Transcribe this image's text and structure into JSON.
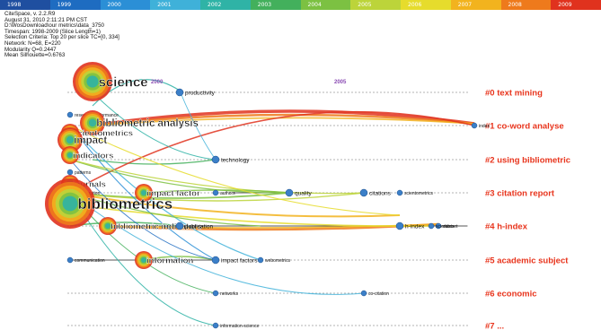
{
  "year_bar": {
    "years": [
      "1998",
      "1999",
      "2000",
      "2001",
      "2002",
      "2003",
      "2004",
      "2005",
      "2006",
      "2007",
      "2008",
      "2009"
    ],
    "colors": [
      "#1f4fa0",
      "#1e6cc1",
      "#2b8fd6",
      "#3fb1d9",
      "#2fb3a6",
      "#43b05c",
      "#7cc142",
      "#bcd43a",
      "#e6dc2c",
      "#f2b31e",
      "#ee7a1c",
      "#e0321e"
    ]
  },
  "info": {
    "lines": [
      "CiteSpace, v. 2.2.R9",
      "August 31, 2010 2:11:21 PM CST",
      "D:\\WosDownload\\our metrics\\data_3750",
      "Timespan: 1998-2009 (Slice Length=1)",
      "Selection Criteria: Top 20 per slice TC=[0, 334]",
      "Network: N=68, E=220",
      "Modularity Q=0.2447",
      "Mean Silhouette=0.6763"
    ]
  },
  "timeline": {
    "years": [
      {
        "label": "2000",
        "key": "y2000"
      },
      {
        "label": "2005",
        "key": "y2005"
      }
    ]
  },
  "clusters": [
    {
      "id": "#0",
      "label": "text mining"
    },
    {
      "id": "#1",
      "label": "co-word analyse"
    },
    {
      "id": "#2",
      "label": "using bibliometric"
    },
    {
      "id": "#3",
      "label": "citation report"
    },
    {
      "id": "#4",
      "label": "h-index"
    },
    {
      "id": "#5",
      "label": "academic subject"
    },
    {
      "id": "#6",
      "label": "economic"
    },
    {
      "id": "#7",
      "label": "..."
    }
  ],
  "cluster_color": "#e8341c",
  "nodes": [
    {
      "key": "science",
      "text": "science",
      "lane": 0,
      "yr": "y1999b",
      "size": "xl"
    },
    {
      "key": "productivity",
      "text": "productivity",
      "lane": 0,
      "yr": "y2002",
      "size": "s"
    },
    {
      "key": "research_performance",
      "text": "research performance",
      "lane": 1,
      "yr": "y1999a",
      "size": "xs"
    },
    {
      "key": "bibliometric_analysis",
      "text": "bibliometric analysis",
      "lane": 1,
      "yr": "y1999b",
      "size": "l"
    },
    {
      "key": "scientometrics",
      "text": "scientometrics",
      "lane": 1,
      "yr": "y1999a",
      "size": "m"
    },
    {
      "key": "impact",
      "text": "impact",
      "lane": 1,
      "yr": "y1999a",
      "size": "l"
    },
    {
      "key": "index",
      "text": "index",
      "lane": 1,
      "yr": "y2009",
      "size": "xs"
    },
    {
      "key": "indicators",
      "text": "indicators",
      "lane": 2,
      "yr": "y1999a",
      "size": "m"
    },
    {
      "key": "technology",
      "text": "technology",
      "lane": 2,
      "yr": "y2002b",
      "size": "s"
    },
    {
      "key": "patterns",
      "text": "patterns",
      "lane": 2,
      "yr": "y1999a",
      "size": "xs"
    },
    {
      "key": "journals",
      "text": "journals",
      "lane": 3,
      "yr": "y1999a",
      "size": "m"
    },
    {
      "key": "collaboration",
      "text": "collaboration",
      "lane": 3,
      "yr": "y1999a",
      "size": "xs"
    },
    {
      "key": "impact_factor",
      "text": "impact factor",
      "lane": 3,
      "yr": "y2001",
      "size": "m"
    },
    {
      "key": "authors",
      "text": "authors",
      "lane": 3,
      "yr": "y2002b",
      "size": "xs"
    },
    {
      "key": "quality",
      "text": "quality",
      "lane": 3,
      "yr": "y2004",
      "size": "s"
    },
    {
      "key": "citations",
      "text": "citations",
      "lane": 3,
      "yr": "y2005",
      "size": "s"
    },
    {
      "key": "scientometrics2",
      "text": "scientometrics",
      "lane": 3,
      "yr": "y2006",
      "size": "xs"
    },
    {
      "key": "bibliometrics",
      "text": "bibliometrics",
      "lane": 3,
      "yr": "y1999a",
      "size": "xxl"
    },
    {
      "key": "h_index",
      "text": "h-index",
      "lane": 4,
      "yr": "y2006",
      "size": "s"
    },
    {
      "key": "dataset",
      "text": "dataset",
      "lane": 4,
      "yr": "y2008",
      "size": "xs"
    },
    {
      "key": "scientists",
      "text": "scientists",
      "lane": 4,
      "yr": "y2007",
      "size": "xs"
    },
    {
      "key": "bibliometric_indicators",
      "text": "bibliometric indicators",
      "lane": 4,
      "yr": "y2000",
      "size": "m"
    },
    {
      "key": "publication",
      "text": "publication",
      "lane": 4,
      "yr": "y2002",
      "size": "s"
    },
    {
      "key": "communication",
      "text": "communication",
      "lane": 5,
      "yr": "y1999a",
      "size": "xs"
    },
    {
      "key": "information",
      "text": "information",
      "lane": 5,
      "yr": "y2001",
      "size": "m"
    },
    {
      "key": "impact_factors",
      "text": "impact factors",
      "lane": 5,
      "yr": "y2002b",
      "size": "s"
    },
    {
      "key": "webometrics",
      "text": "webometrics",
      "lane": 5,
      "yr": "y2003",
      "size": "xs"
    },
    {
      "key": "networks",
      "text": "networks",
      "lane": 6,
      "yr": "y2002b",
      "size": "xs"
    },
    {
      "key": "cocitation",
      "text": "co-citation",
      "lane": 6,
      "yr": "y2005",
      "size": "xs"
    },
    {
      "key": "information_science",
      "text": "information-science",
      "lane": 7,
      "yr": "y2002b",
      "size": "xs"
    }
  ]
}
